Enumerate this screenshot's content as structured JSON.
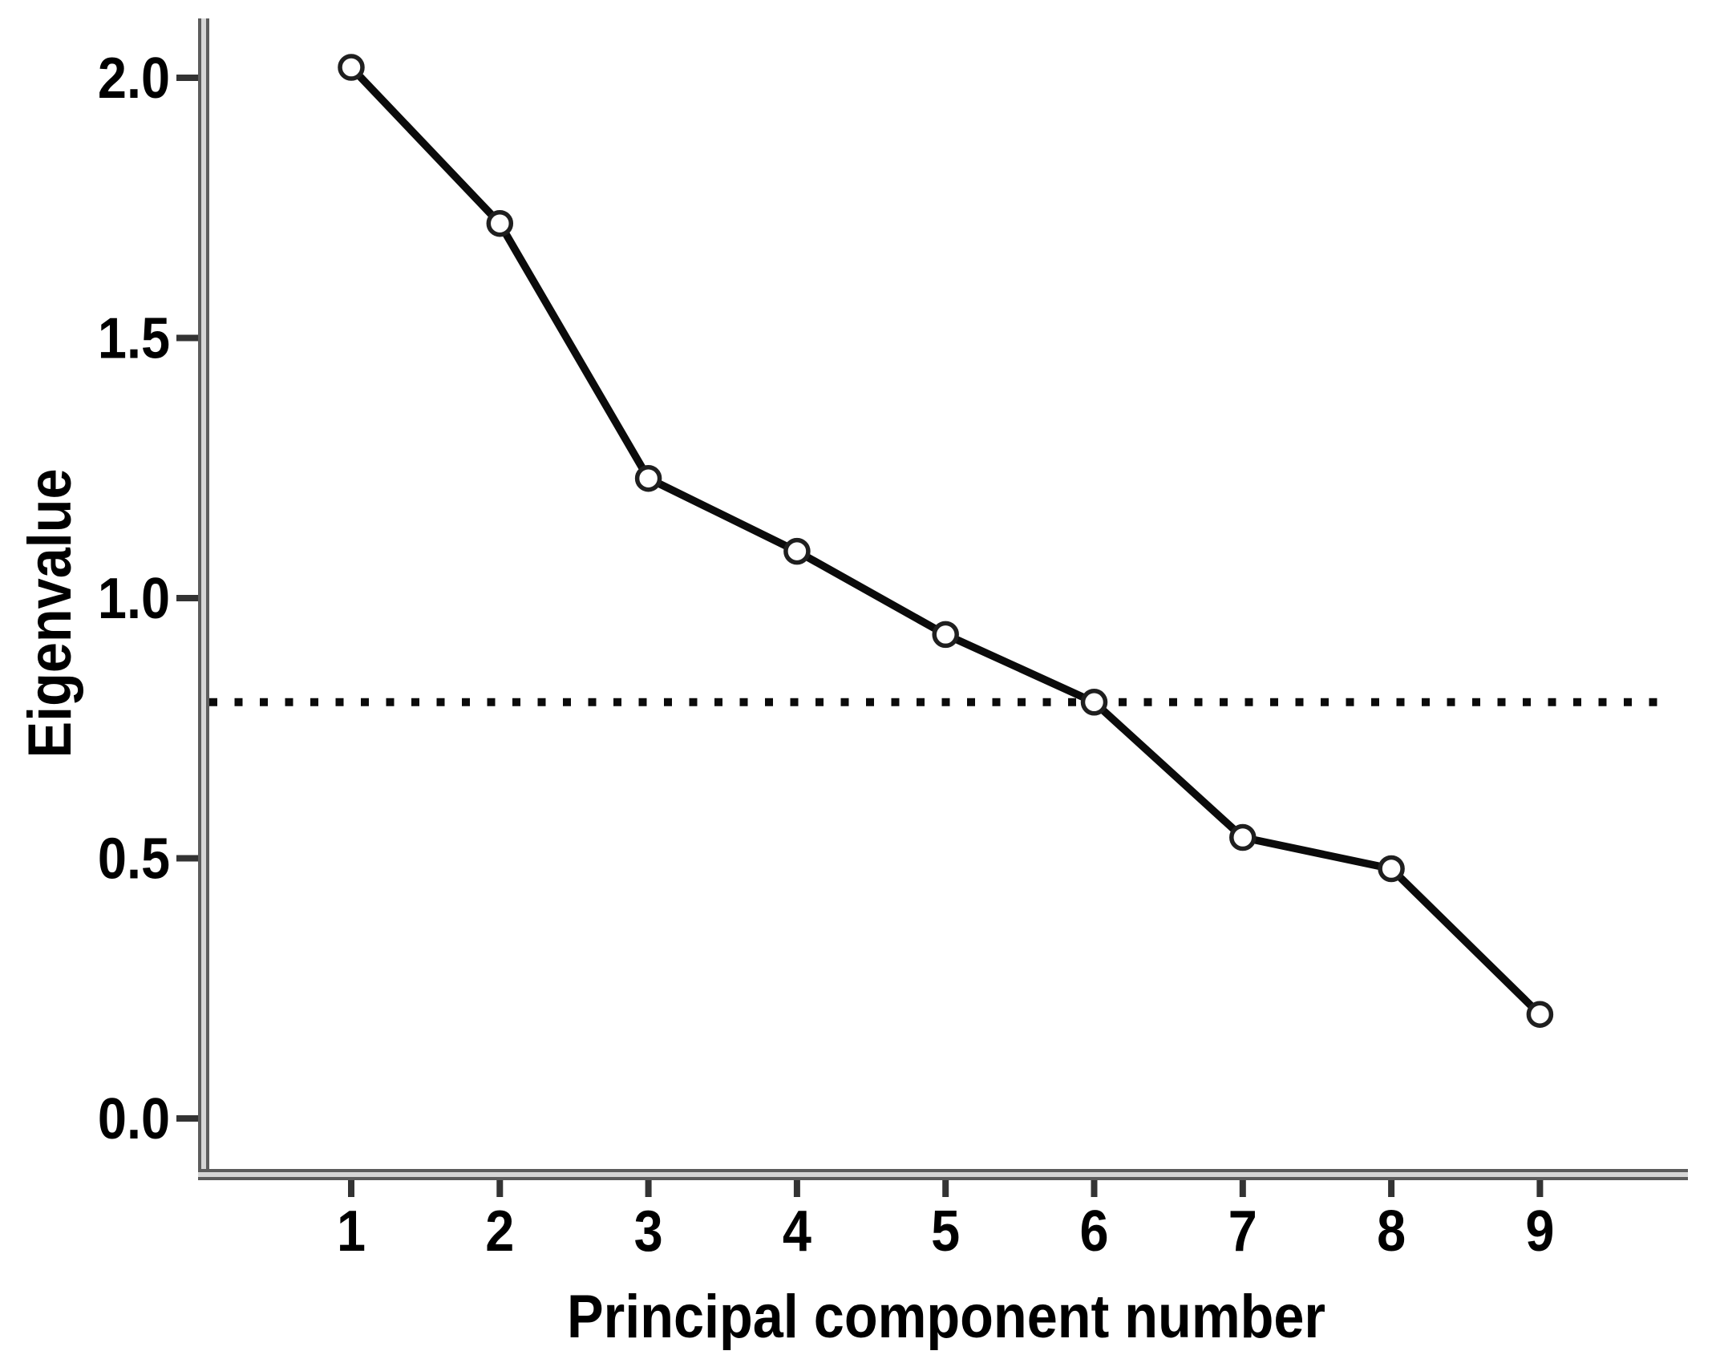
{
  "chart_data": {
    "type": "line",
    "title": "",
    "xlabel": "Principal component number",
    "ylabel": "Eigenvalue",
    "x": [
      1,
      2,
      3,
      4,
      5,
      6,
      7,
      8,
      9
    ],
    "x_tick_labels": [
      "1",
      "2",
      "3",
      "4",
      "5",
      "6",
      "7",
      "8",
      "9"
    ],
    "y_tick_labels": [
      "0.0",
      "0.5",
      "1.0",
      "1.5",
      "2.0"
    ],
    "y_tick_values": [
      0.0,
      0.5,
      1.0,
      1.5,
      2.0
    ],
    "series": [
      {
        "name": "eigenvalues",
        "values": [
          2.02,
          1.72,
          1.23,
          1.09,
          0.93,
          0.8,
          0.54,
          0.48,
          0.2
        ]
      }
    ],
    "reference_line": {
      "value": 0.8,
      "style": "dotted"
    },
    "xlim": [
      0,
      10
    ],
    "ylim": [
      0,
      2.11
    ],
    "grid": false,
    "legend_position": "none",
    "marker": "open-circle",
    "colors": {
      "line": "#0b0b0b",
      "marker_stroke": "#1f1f1f",
      "marker_fill": "#ffffff",
      "reference_line": "#0b0b0b",
      "axis_edge": "#5c5c5c",
      "axis_core": "#d6d6d6",
      "tick": "#333333",
      "text": "#000000",
      "background": "#ffffff"
    }
  }
}
